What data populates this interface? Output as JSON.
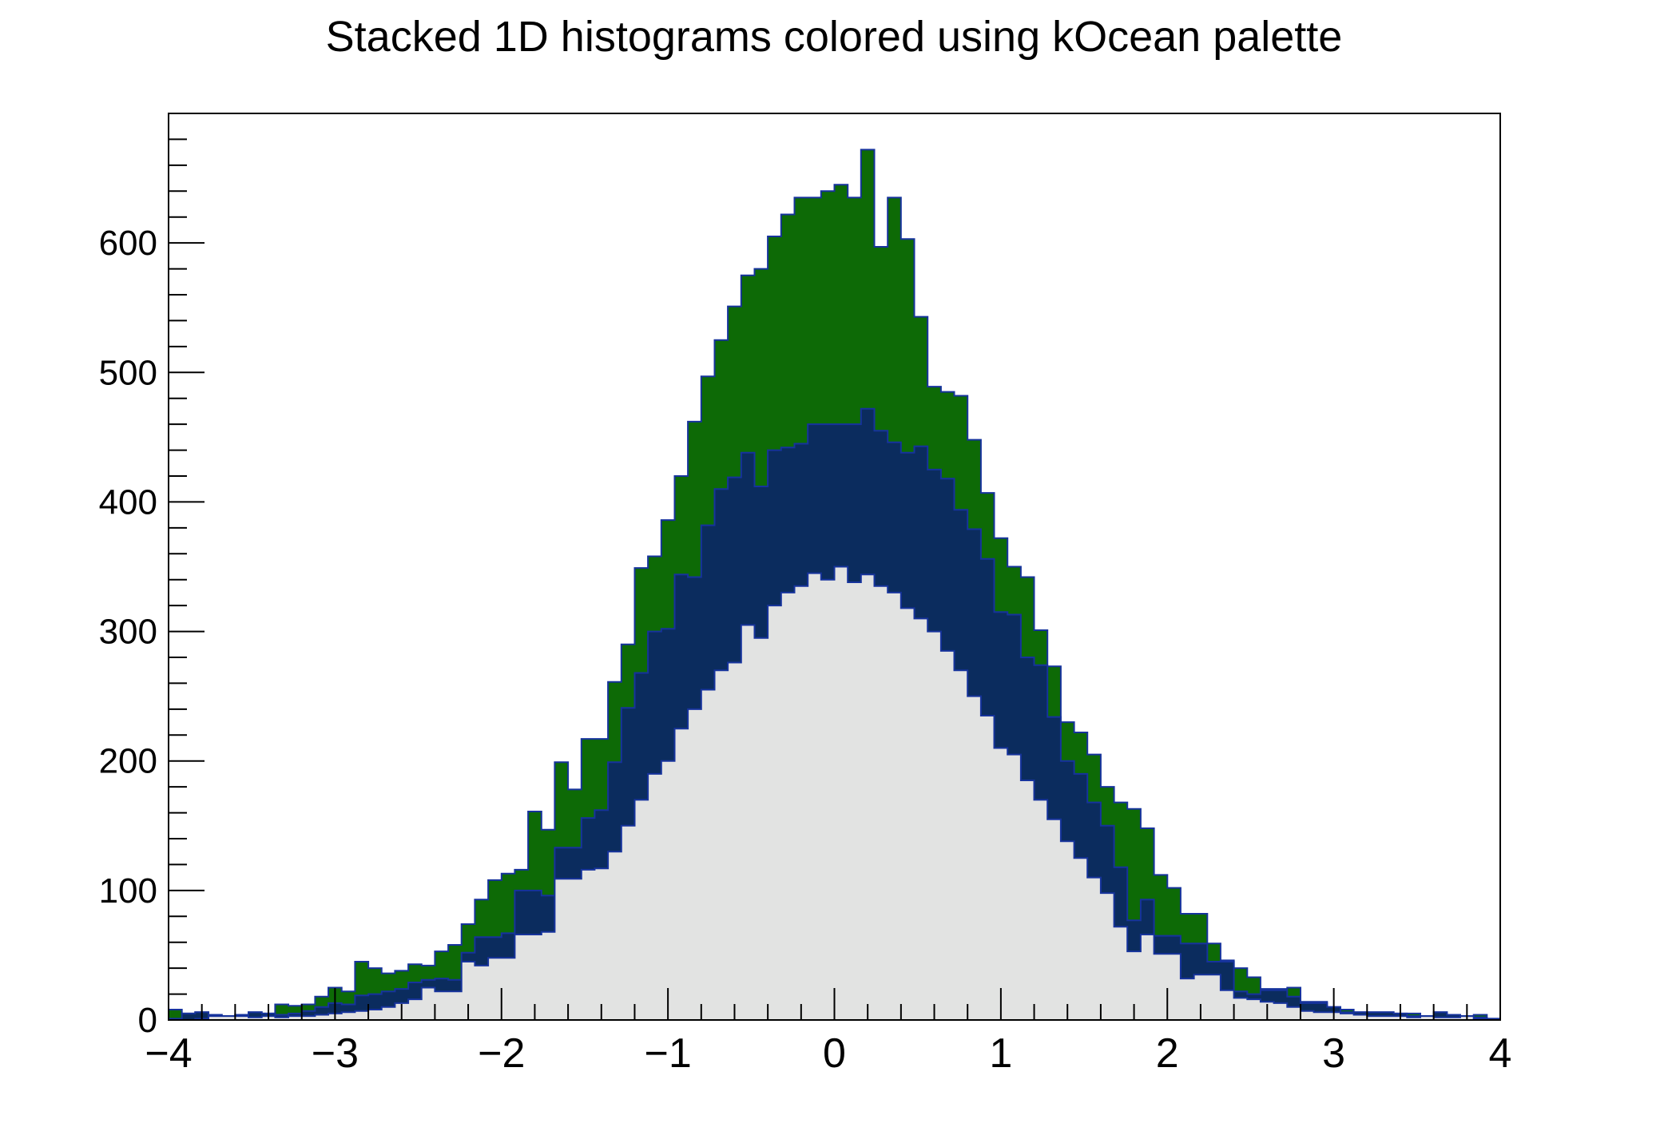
{
  "title": "Stacked 1D histograms colored using kOcean palette",
  "background": "#ffffff",
  "frame": {
    "border_color": "#000000"
  },
  "chart_data": {
    "type": "bar",
    "subtype": "stacked-histogram",
    "title": "Stacked 1D histograms colored using kOcean palette",
    "xlabel": "",
    "ylabel": "",
    "xlim": [
      -4,
      4
    ],
    "ylim": [
      0,
      700
    ],
    "n_bins": 100,
    "bin_start": -4,
    "bin_width": 0.08,
    "grid": false,
    "legend": "none",
    "line_color": "#16339c",
    "x_axis": {
      "major_ticks": [
        -4,
        -3,
        -2,
        -1,
        0,
        1,
        2,
        3,
        4
      ],
      "labels": [
        "−4",
        "−3",
        "−2",
        "−1",
        "0",
        "1",
        "2",
        "3",
        "4"
      ],
      "minor_step": 0.2
    },
    "y_axis": {
      "major_ticks": [
        0,
        100,
        200,
        300,
        400,
        500,
        600
      ],
      "labels": [
        "0",
        "100",
        "200",
        "300",
        "400",
        "500",
        "600"
      ],
      "minor_step": 20
    },
    "series": [
      {
        "name": "histogram-1-bottom",
        "color": "#e2e3e2",
        "values": [
          0,
          0,
          1,
          3,
          3,
          3,
          2,
          3,
          2,
          3,
          3,
          4,
          5,
          6,
          7,
          8,
          10,
          13,
          16,
          25,
          22,
          22,
          45,
          42,
          48,
          48,
          66,
          66,
          68,
          109,
          109,
          116,
          117,
          130,
          150,
          170,
          190,
          200,
          225,
          240,
          255,
          270,
          276,
          305,
          295,
          320,
          330,
          335,
          345,
          340,
          350,
          338,
          344,
          335,
          330,
          318,
          310,
          300,
          285,
          270,
          250,
          235,
          210,
          205,
          185,
          170,
          155,
          138,
          125,
          110,
          98,
          72,
          53,
          66,
          51,
          51,
          32,
          35,
          35,
          23,
          17,
          16,
          14,
          13,
          10,
          7,
          6,
          6,
          5,
          4,
          3,
          3,
          3,
          2,
          3,
          2,
          2,
          3,
          1,
          0
        ]
      },
      {
        "name": "histogram-2-middle",
        "color": "#0b2c5e",
        "values": [
          1,
          5,
          5,
          1,
          0,
          1,
          4,
          2,
          2,
          2,
          4,
          6,
          8,
          6,
          12,
          12,
          12,
          11,
          13,
          6,
          10,
          9,
          7,
          22,
          16,
          19,
          34,
          34,
          28,
          24,
          24,
          40,
          45,
          69,
          91,
          98,
          110,
          102,
          119,
          102,
          127,
          140,
          143,
          133,
          117,
          120,
          112,
          110,
          115,
          120,
          110,
          122,
          128,
          120,
          116,
          120,
          133,
          125,
          133,
          124,
          129,
          121,
          105,
          108,
          95,
          104,
          79,
          62,
          65,
          58,
          52,
          46,
          24,
          27,
          14,
          14,
          27,
          24,
          10,
          22,
          5,
          4,
          9,
          10,
          8,
          6,
          7,
          4,
          1,
          2,
          3,
          3,
          2,
          1,
          0,
          4,
          2,
          0,
          1,
          1
        ]
      },
      {
        "name": "histogram-3-top",
        "color": "#0d6a06",
        "values": [
          7,
          0,
          0,
          0,
          0,
          0,
          0,
          0,
          8,
          6,
          5,
          8,
          12,
          10,
          26,
          20,
          14,
          14,
          14,
          11,
          21,
          27,
          22,
          29,
          44,
          46,
          16,
          61,
          51,
          66,
          45,
          61,
          55,
          62,
          49,
          81,
          58,
          84,
          76,
          120,
          115,
          115,
          132,
          137,
          168,
          165,
          180,
          190,
          175,
          180,
          185,
          175,
          200,
          142,
          189,
          165,
          100,
          64,
          67,
          88,
          69,
          51,
          57,
          37,
          62,
          27,
          39,
          30,
          32,
          37,
          30,
          50,
          86,
          55,
          47,
          37,
          23,
          23,
          14,
          1,
          18,
          13,
          1,
          1,
          7,
          1,
          1,
          0,
          2,
          0,
          0,
          0,
          0,
          2,
          0,
          0,
          0,
          0,
          2,
          0
        ]
      }
    ]
  }
}
